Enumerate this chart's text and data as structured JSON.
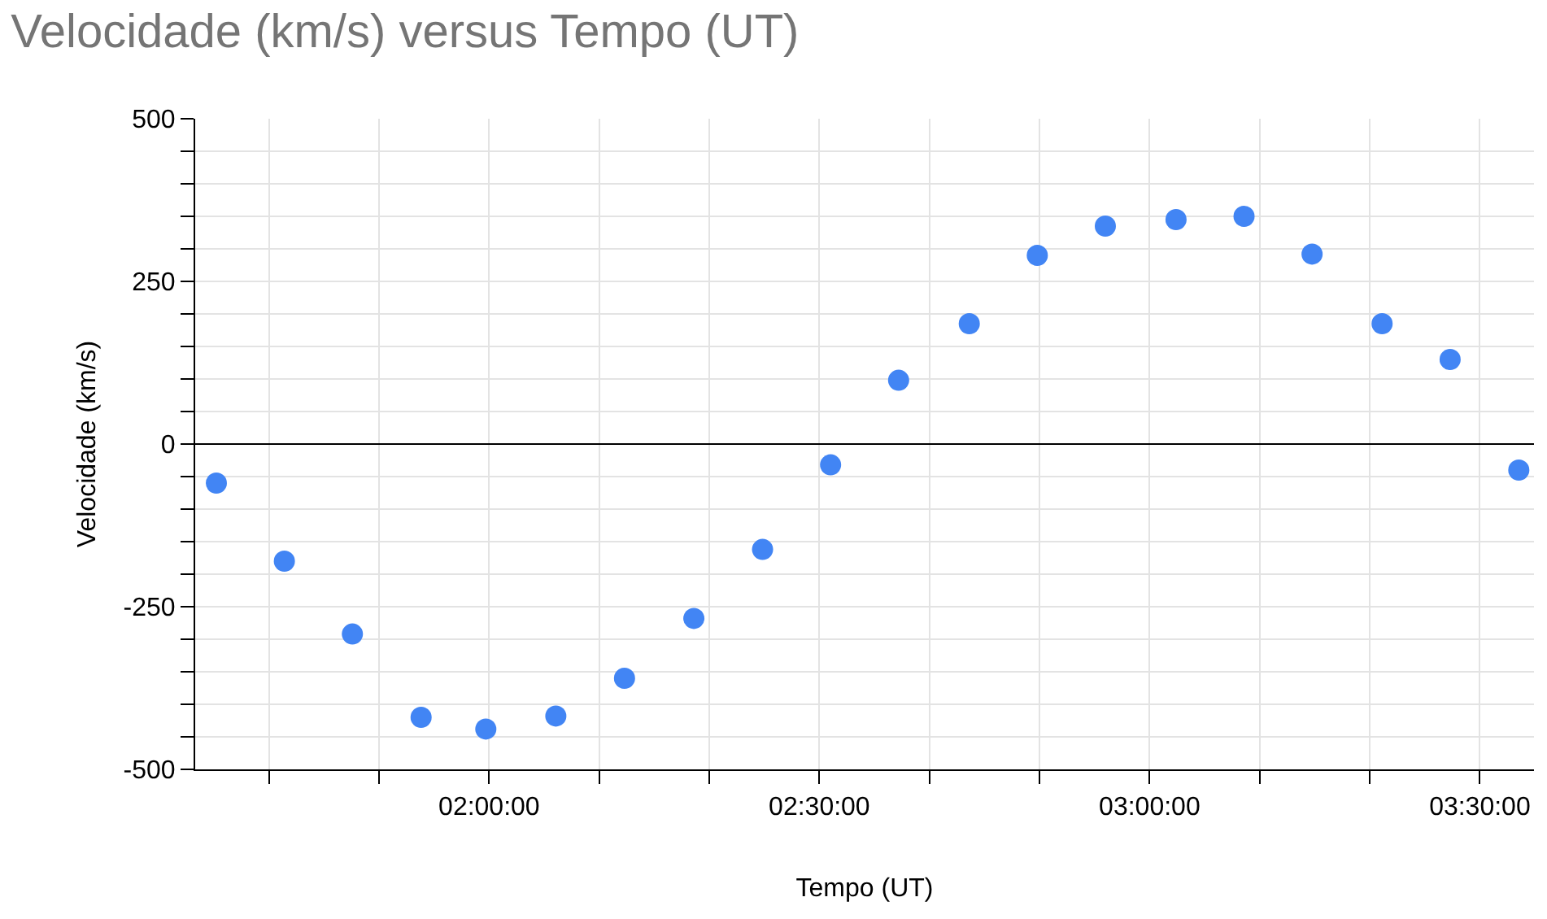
{
  "chart_data": {
    "type": "scatter",
    "title": "Velocidade (km/s) versus Tempo (UT)",
    "xlabel": "Tempo (UT)",
    "ylabel": "Velocidade (km/s)",
    "x": [
      1.587,
      1.69,
      1.793,
      1.897,
      1.995,
      2.101,
      2.205,
      2.31,
      2.414,
      2.517,
      2.62,
      2.727,
      2.83,
      2.933,
      3.04,
      3.143,
      3.246,
      3.352,
      3.455,
      3.559
    ],
    "series": [
      {
        "color": "#4285f4",
        "values": [
          -60,
          -180,
          -292,
          -420,
          -438,
          -418,
          -360,
          -268,
          -162,
          -32,
          98,
          185,
          290,
          335,
          345,
          350,
          292,
          185,
          130,
          -40
        ]
      }
    ],
    "xlim": [
      1.555,
      3.582
    ],
    "xticks": [
      {
        "value": 1.6667,
        "label": null
      },
      {
        "value": 1.8333,
        "label": null
      },
      {
        "value": 2,
        "label": "02:00:00"
      },
      {
        "value": 2.1667,
        "label": null
      },
      {
        "value": 2.3333,
        "label": null
      },
      {
        "value": 2.5,
        "label": "02:30:00"
      },
      {
        "value": 2.6667,
        "label": null
      },
      {
        "value": 2.8333,
        "label": null
      },
      {
        "value": 3,
        "label": "03:00:00"
      },
      {
        "value": 3.1667,
        "label": null
      },
      {
        "value": 3.3333,
        "label": null
      },
      {
        "value": 3.5,
        "label": "03:30:00"
      }
    ],
    "ylim": [
      -500,
      500
    ],
    "yticks": [
      -500,
      {
        "value": -450,
        "label": null
      },
      {
        "value": -400,
        "label": null
      },
      {
        "value": -350,
        "label": null
      },
      {
        "value": -300,
        "label": null
      },
      -250,
      {
        "value": -200,
        "label": null
      },
      {
        "value": -150,
        "label": null
      },
      {
        "value": -100,
        "label": null
      },
      {
        "value": -50,
        "label": null
      },
      0,
      {
        "value": 50,
        "label": null
      },
      {
        "value": 100,
        "label": null
      },
      {
        "value": 150,
        "label": null
      },
      {
        "value": 200,
        "label": null
      },
      250,
      {
        "value": 300,
        "label": null
      },
      {
        "value": 350,
        "label": null
      },
      {
        "value": 400,
        "label": null
      },
      {
        "value": 450,
        "label": null
      },
      500
    ],
    "grid": true,
    "marker": "circle"
  }
}
